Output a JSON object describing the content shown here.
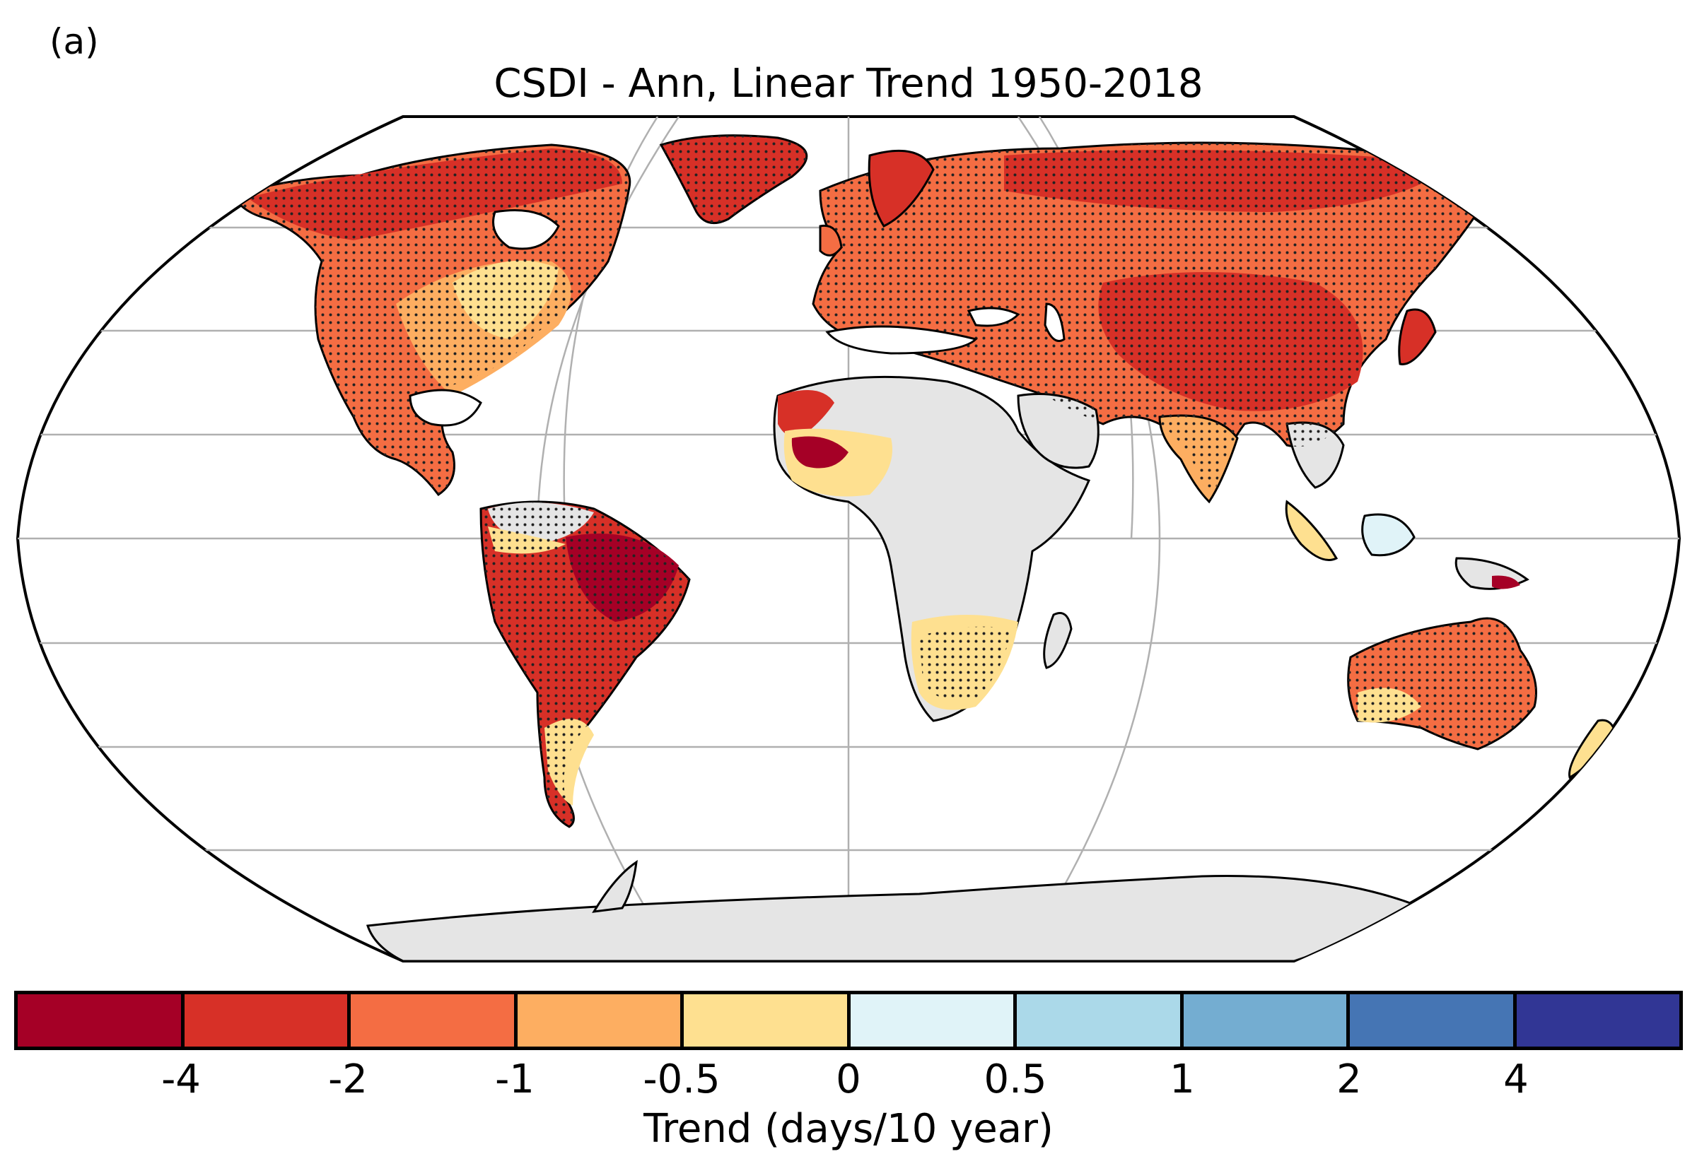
{
  "panel_label": "(a)",
  "title": "CSDI - Ann, Linear Trend 1950-2018",
  "colorbar": {
    "label": "Trend (days/10 year)",
    "ticks": [
      "-4",
      "-2",
      "-1",
      "-0.5",
      "0",
      "0.5",
      "1",
      "2",
      "4"
    ],
    "colors": [
      "#a50026",
      "#d73027",
      "#f46d43",
      "#fdae61",
      "#fee090",
      "#e0f3f8",
      "#abd9e9",
      "#74add1",
      "#4575b4",
      "#313695"
    ]
  },
  "map": {
    "projection": "Robinson",
    "missing_data_color": "#e5e5e5",
    "stippling": "significant trend"
  }
}
